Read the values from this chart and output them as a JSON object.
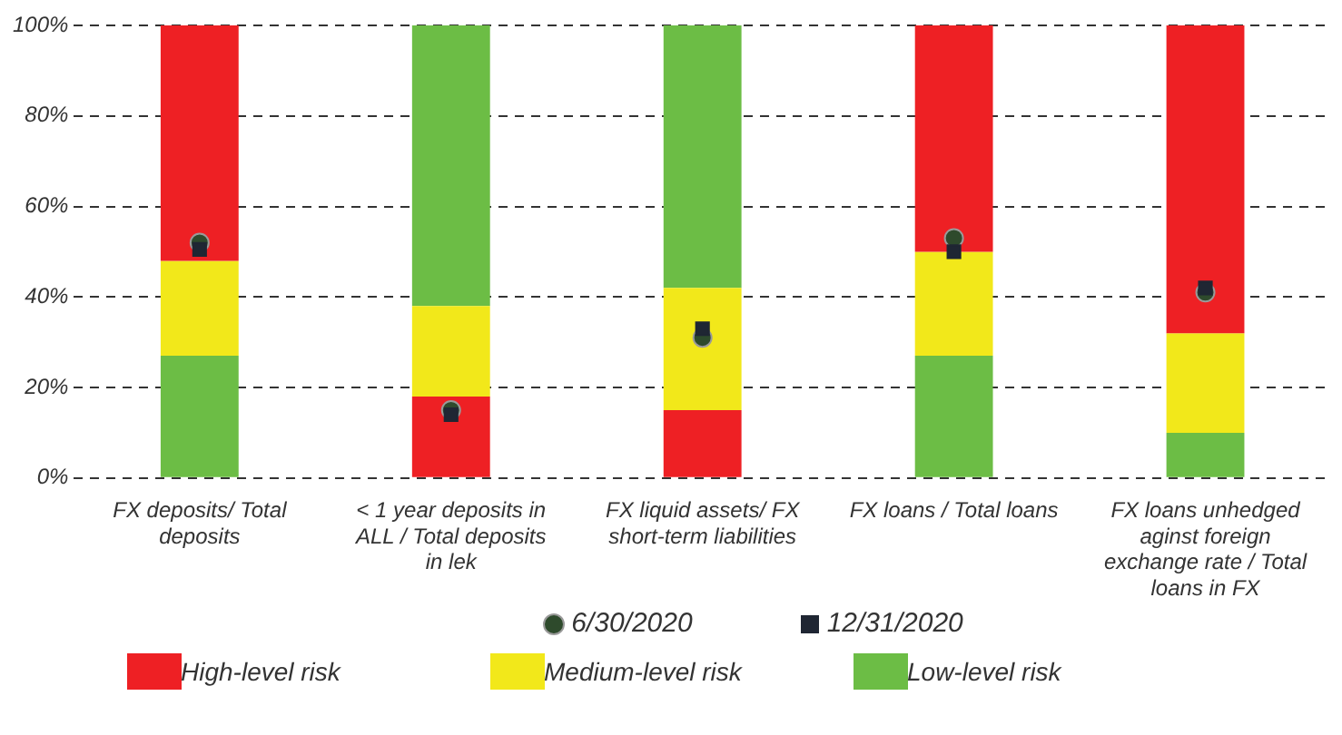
{
  "chart_data": {
    "type": "bar",
    "categories": [
      "FX deposits/ Total deposits",
      "< 1 year deposits in ALL / Total deposits in lek",
      "FX liquid assets/ FX short-term liabilities",
      "FX loans / Total loans",
      "FX loans unhedged aginst foreign exchange rate / Total loans in FX"
    ],
    "series": [
      {
        "name": "High-level risk",
        "color": "#ee2024",
        "base": [
          48,
          0,
          0,
          50,
          32
        ],
        "values": [
          52,
          18,
          15,
          50,
          68
        ]
      },
      {
        "name": "Medium-level risk",
        "color": "#f2e81a",
        "base": [
          27,
          18,
          15,
          27,
          10
        ],
        "values": [
          21,
          20,
          27,
          23,
          22
        ]
      },
      {
        "name": "Low-level risk",
        "color": "#6cbd45",
        "base": [
          0,
          38,
          42,
          0,
          0
        ],
        "values": [
          27,
          62,
          58,
          27,
          10
        ]
      },
      {
        "name": "6/30/2020",
        "type": "scatter",
        "marker": "circle",
        "color": "#2e4a2c",
        "values": [
          52,
          15,
          31,
          53,
          41
        ]
      },
      {
        "name": "12/31/2020",
        "type": "scatter",
        "marker": "square",
        "color": "#1f2633",
        "values": [
          50.5,
          14,
          33,
          50,
          42
        ]
      }
    ],
    "ylim": [
      0,
      100
    ],
    "yticks": [
      {
        "value": 0,
        "label": "0%"
      },
      {
        "value": 20,
        "label": "20%"
      },
      {
        "value": 40,
        "label": "40%"
      },
      {
        "value": 60,
        "label": "60%"
      },
      {
        "value": 80,
        "label": "80%"
      },
      {
        "value": 100,
        "label": "100%"
      }
    ],
    "grid": "y",
    "legend": "bottom"
  }
}
